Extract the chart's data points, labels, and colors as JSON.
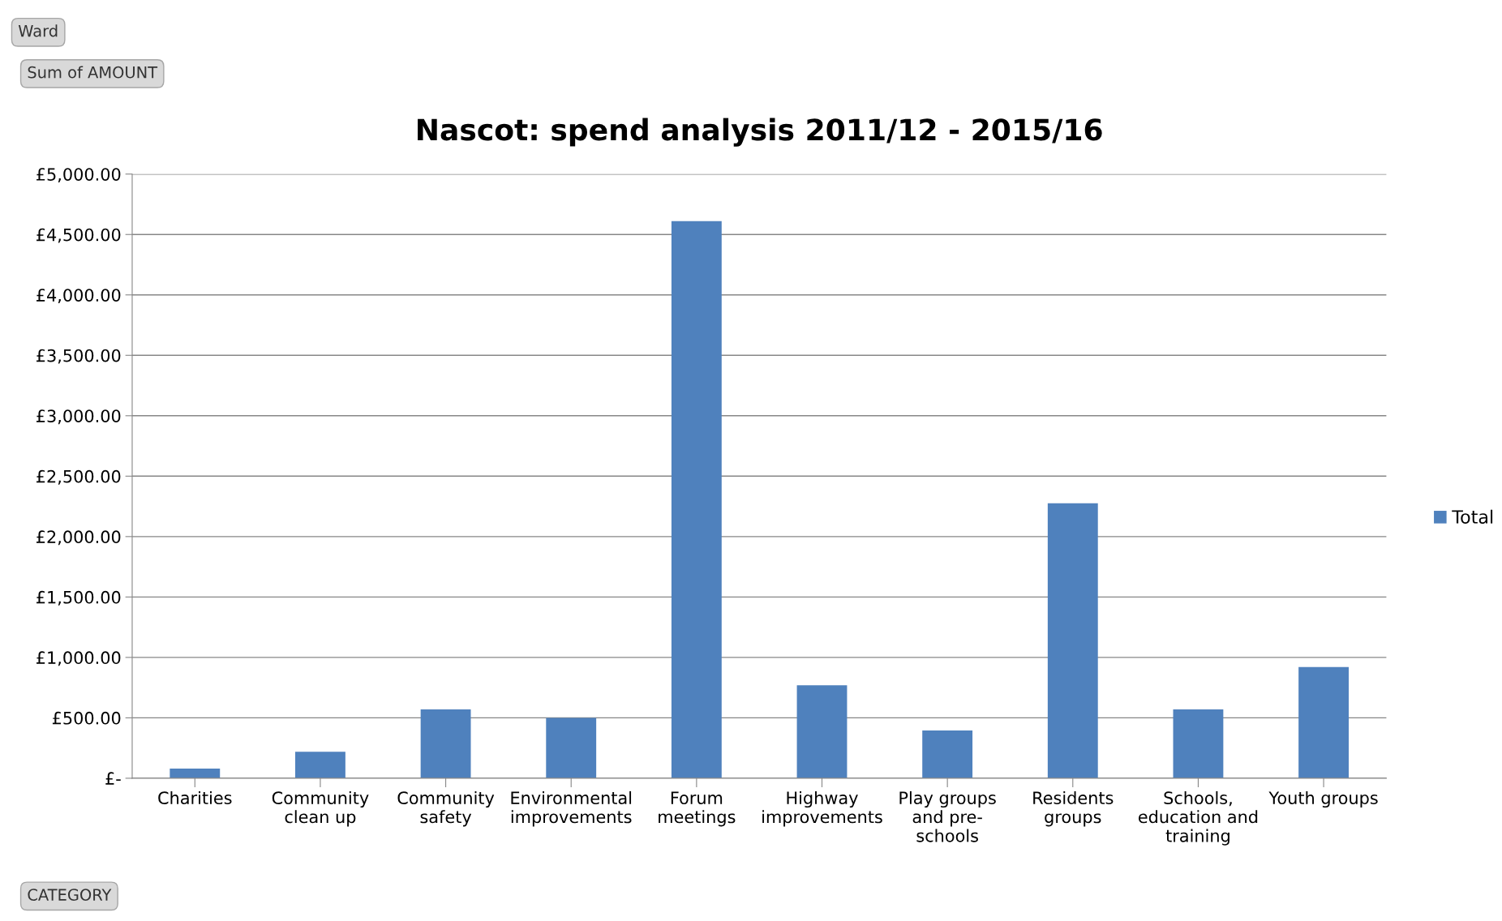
{
  "chart_data": {
    "type": "bar",
    "title": "Nascot: spend analysis 2011/12 - 2015/16",
    "categories": [
      "Charities",
      "Community\nclean up",
      "Community\nsafety",
      "Environmental\nimprovements",
      "Forum\nmeetings",
      "Highway\nimprovements",
      "Play groups\nand pre-\nschools",
      "Residents\ngroups",
      "Schools,\neducation and\ntraining",
      "Youth groups"
    ],
    "series": [
      {
        "name": "Total",
        "color": "#4f81bd",
        "values": [
          80,
          220,
          570,
          500,
          4610,
          770,
          395,
          2275,
          570,
          920
        ]
      }
    ],
    "ylim": [
      0,
      5000
    ],
    "yticks": [
      {
        "value": 0,
        "label": "£-"
      },
      {
        "value": 500,
        "label": "£500.00"
      },
      {
        "value": 1000,
        "label": "£1,000.00"
      },
      {
        "value": 1500,
        "label": "£1,500.00"
      },
      {
        "value": 2000,
        "label": "£2,000.00"
      },
      {
        "value": 2500,
        "label": "£2,500.00"
      },
      {
        "value": 3000,
        "label": "£3,000.00"
      },
      {
        "value": 3500,
        "label": "£3,500.00"
      },
      {
        "value": 4000,
        "label": "£4,000.00"
      },
      {
        "value": 4500,
        "label": "£4,500.00"
      },
      {
        "value": 5000,
        "label": "£5,000.00"
      }
    ],
    "grid": "y",
    "legend": "right",
    "annotations": [
      "Ward",
      "Sum of AMOUNT",
      "CATEGORY"
    ]
  }
}
